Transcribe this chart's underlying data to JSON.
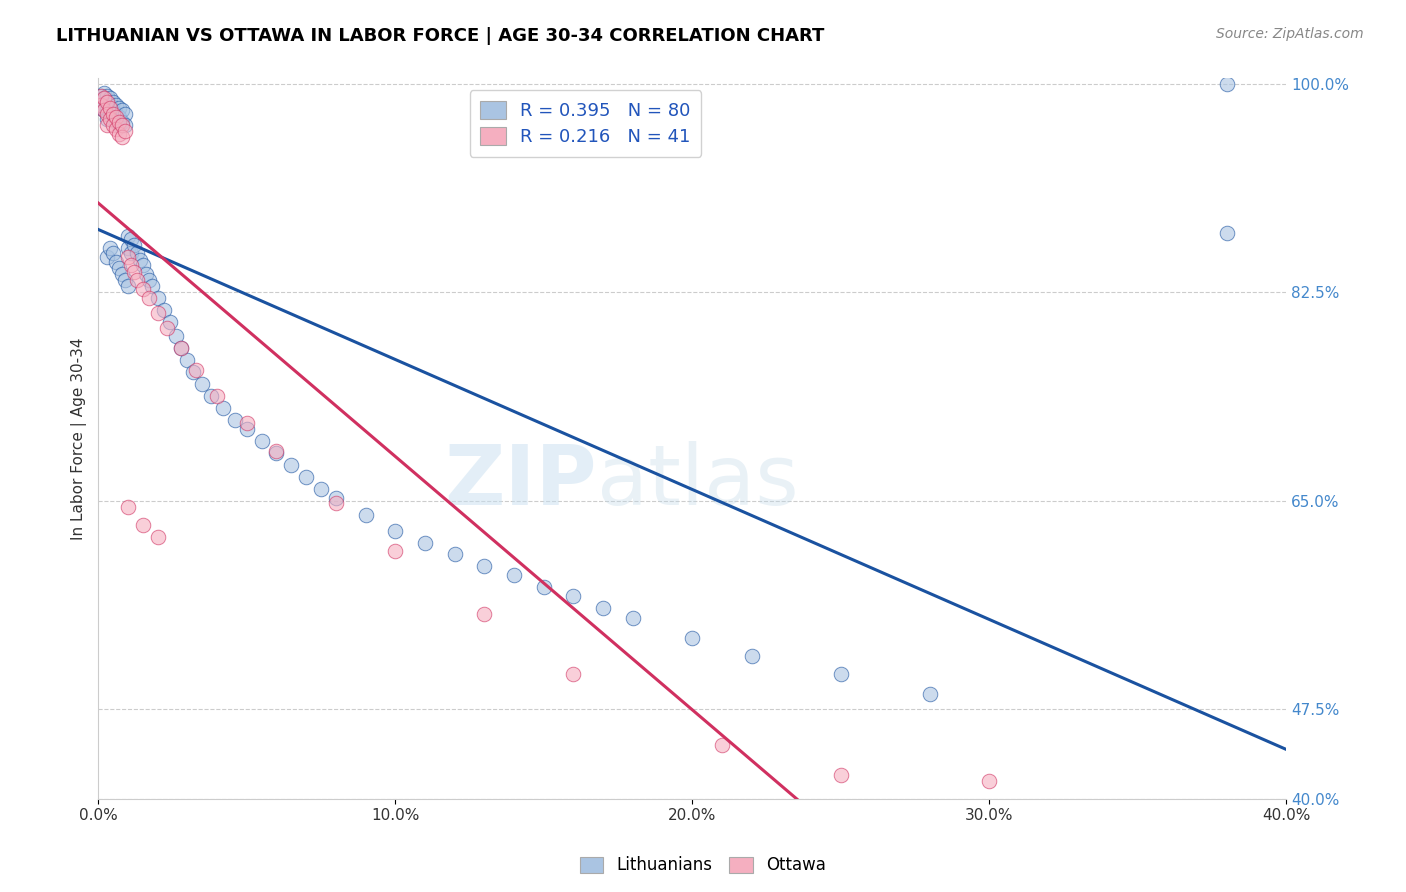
{
  "title": "LITHUANIAN VS OTTAWA IN LABOR FORCE | AGE 30-34 CORRELATION CHART",
  "source_text": "Source: ZipAtlas.com",
  "ylabel": "In Labor Force | Age 30-34",
  "xlim": [
    0.0,
    0.4
  ],
  "ylim": [
    0.4,
    1.005
  ],
  "xtick_labels": [
    "0.0%",
    "10.0%",
    "20.0%",
    "30.0%",
    "40.0%"
  ],
  "xtick_values": [
    0.0,
    0.1,
    0.2,
    0.3,
    0.4
  ],
  "ytick_labels": [
    "100.0%",
    "82.5%",
    "65.0%",
    "47.5%",
    "40.0%"
  ],
  "ytick_values": [
    1.0,
    0.825,
    0.65,
    0.475,
    0.4
  ],
  "blue_R": 0.395,
  "blue_N": 80,
  "pink_R": 0.216,
  "pink_N": 41,
  "blue_color": "#aac4e2",
  "pink_color": "#f5afc0",
  "blue_line_color": "#1a52a0",
  "pink_line_color": "#d03060",
  "watermark_zip": "ZIP",
  "watermark_atlas": "atlas",
  "legend_blue_label": "Lithuanians",
  "legend_pink_label": "Ottawa",
  "blue_x": [
    0.001,
    0.001,
    0.001,
    0.002,
    0.002,
    0.002,
    0.002,
    0.003,
    0.003,
    0.003,
    0.003,
    0.004,
    0.004,
    0.004,
    0.005,
    0.005,
    0.005,
    0.006,
    0.006,
    0.006,
    0.007,
    0.007,
    0.007,
    0.008,
    0.008,
    0.009,
    0.009,
    0.01,
    0.01,
    0.011,
    0.011,
    0.012,
    0.013,
    0.014,
    0.015,
    0.016,
    0.017,
    0.018,
    0.02,
    0.022,
    0.024,
    0.026,
    0.028,
    0.03,
    0.032,
    0.035,
    0.038,
    0.042,
    0.046,
    0.05,
    0.055,
    0.06,
    0.065,
    0.07,
    0.075,
    0.08,
    0.09,
    0.1,
    0.11,
    0.12,
    0.13,
    0.14,
    0.15,
    0.16,
    0.17,
    0.18,
    0.2,
    0.22,
    0.25,
    0.28,
    0.003,
    0.004,
    0.005,
    0.006,
    0.007,
    0.008,
    0.009,
    0.01,
    0.38,
    0.38
  ],
  "blue_y": [
    0.99,
    0.985,
    0.98,
    0.992,
    0.988,
    0.982,
    0.978,
    0.99,
    0.985,
    0.978,
    0.97,
    0.988,
    0.982,
    0.975,
    0.985,
    0.978,
    0.97,
    0.982,
    0.975,
    0.968,
    0.98,
    0.972,
    0.965,
    0.978,
    0.968,
    0.975,
    0.965,
    0.872,
    0.862,
    0.87,
    0.858,
    0.865,
    0.858,
    0.852,
    0.848,
    0.84,
    0.835,
    0.83,
    0.82,
    0.81,
    0.8,
    0.788,
    0.778,
    0.768,
    0.758,
    0.748,
    0.738,
    0.728,
    0.718,
    0.71,
    0.7,
    0.69,
    0.68,
    0.67,
    0.66,
    0.652,
    0.638,
    0.625,
    0.615,
    0.605,
    0.595,
    0.588,
    0.578,
    0.57,
    0.56,
    0.552,
    0.535,
    0.52,
    0.505,
    0.488,
    0.855,
    0.862,
    0.858,
    0.85,
    0.845,
    0.84,
    0.835,
    0.83,
    1.0,
    0.875
  ],
  "pink_x": [
    0.001,
    0.001,
    0.002,
    0.002,
    0.003,
    0.003,
    0.003,
    0.004,
    0.004,
    0.005,
    0.005,
    0.006,
    0.006,
    0.007,
    0.007,
    0.008,
    0.008,
    0.009,
    0.01,
    0.011,
    0.012,
    0.013,
    0.015,
    0.017,
    0.02,
    0.023,
    0.028,
    0.033,
    0.04,
    0.05,
    0.06,
    0.08,
    0.1,
    0.13,
    0.16,
    0.21,
    0.25,
    0.3,
    0.01,
    0.015,
    0.02
  ],
  "pink_y": [
    0.99,
    0.982,
    0.988,
    0.978,
    0.985,
    0.975,
    0.965,
    0.98,
    0.97,
    0.975,
    0.965,
    0.972,
    0.962,
    0.968,
    0.958,
    0.965,
    0.955,
    0.96,
    0.855,
    0.848,
    0.842,
    0.835,
    0.828,
    0.82,
    0.808,
    0.795,
    0.778,
    0.76,
    0.738,
    0.715,
    0.692,
    0.648,
    0.608,
    0.555,
    0.505,
    0.445,
    0.42,
    0.415,
    0.645,
    0.63,
    0.62
  ]
}
